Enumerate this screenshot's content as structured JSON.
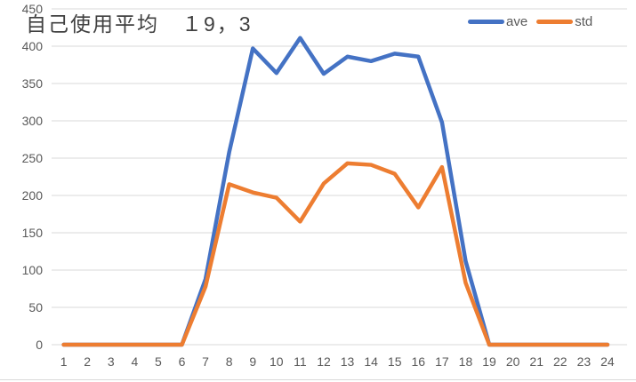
{
  "chart_data": {
    "type": "line",
    "title": "自己使用平均　１9，3",
    "x": [
      1,
      2,
      3,
      4,
      5,
      6,
      7,
      8,
      9,
      10,
      11,
      12,
      13,
      14,
      15,
      16,
      17,
      18,
      19,
      20,
      21,
      22,
      23,
      24
    ],
    "series": [
      {
        "name": "ave",
        "color": "#4472C4",
        "values": [
          0,
          0,
          0,
          0,
          0,
          0,
          88,
          258,
          397,
          364,
          411,
          363,
          386,
          380,
          390,
          386,
          298,
          112,
          0,
          0,
          0,
          0,
          0,
          0
        ]
      },
      {
        "name": "std",
        "color": "#ED7D31",
        "values": [
          0,
          0,
          0,
          0,
          0,
          0,
          78,
          215,
          204,
          197,
          165,
          216,
          243,
          241,
          229,
          184,
          238,
          83,
          0,
          0,
          0,
          0,
          0,
          0
        ]
      }
    ],
    "xlabel": "",
    "ylabel": "",
    "ylim": [
      0,
      450
    ],
    "y_ticks": [
      0,
      50,
      100,
      150,
      200,
      250,
      300,
      350,
      400,
      450
    ],
    "grid": true,
    "gridline_color": "#D9D9D9",
    "axis_text_color": "#595959",
    "title_color": "#404040",
    "legend_position": "top-right"
  }
}
